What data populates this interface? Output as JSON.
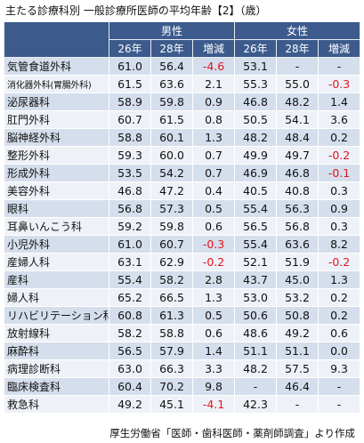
{
  "title": "主たる診療科別 一般診療所医師の平均年齢【2】（歳）",
  "groups": {
    "male": "男性",
    "female": "女性"
  },
  "subheaders": [
    "26年",
    "28年",
    "増減",
    "26年",
    "28年",
    "増減"
  ],
  "rows": [
    {
      "name": "気管食道外科",
      "v": [
        "61.0",
        "56.4",
        "-4.6",
        "53.1",
        "-",
        "-"
      ],
      "neg": [
        false,
        false,
        true,
        false,
        false,
        false
      ]
    },
    {
      "name": "消化器外科(胃腸外科)",
      "v": [
        "61.5",
        "63.6",
        "2.1",
        "55.3",
        "55.0",
        "-0.3"
      ],
      "neg": [
        false,
        false,
        false,
        false,
        false,
        true
      ],
      "small": true
    },
    {
      "name": "泌尿器科",
      "v": [
        "58.9",
        "59.8",
        "0.9",
        "46.8",
        "48.2",
        "1.4"
      ],
      "neg": [
        false,
        false,
        false,
        false,
        false,
        false
      ]
    },
    {
      "name": "肛門外科",
      "v": [
        "60.7",
        "61.5",
        "0.8",
        "50.5",
        "54.1",
        "3.6"
      ],
      "neg": [
        false,
        false,
        false,
        false,
        false,
        false
      ]
    },
    {
      "name": "脳神経外科",
      "v": [
        "58.8",
        "60.1",
        "1.3",
        "48.2",
        "48.4",
        "0.2"
      ],
      "neg": [
        false,
        false,
        false,
        false,
        false,
        false
      ]
    },
    {
      "name": "整形外科",
      "v": [
        "59.3",
        "60.0",
        "0.7",
        "49.9",
        "49.7",
        "-0.2"
      ],
      "neg": [
        false,
        false,
        false,
        false,
        false,
        true
      ]
    },
    {
      "name": "形成外科",
      "v": [
        "53.5",
        "54.2",
        "0.7",
        "46.9",
        "46.8",
        "-0.1"
      ],
      "neg": [
        false,
        false,
        false,
        false,
        false,
        true
      ]
    },
    {
      "name": "美容外科",
      "v": [
        "46.8",
        "47.2",
        "0.4",
        "40.5",
        "40.8",
        "0.3"
      ],
      "neg": [
        false,
        false,
        false,
        false,
        false,
        false
      ]
    },
    {
      "name": "眼科",
      "v": [
        "56.8",
        "57.3",
        "0.5",
        "55.4",
        "56.3",
        "0.9"
      ],
      "neg": [
        false,
        false,
        false,
        false,
        false,
        false
      ]
    },
    {
      "name": "耳鼻いんこう科",
      "v": [
        "59.2",
        "59.8",
        "0.6",
        "56.5",
        "56.8",
        "0.3"
      ],
      "neg": [
        false,
        false,
        false,
        false,
        false,
        false
      ]
    },
    {
      "name": "小児外科",
      "v": [
        "61.0",
        "60.7",
        "-0.3",
        "55.4",
        "63.6",
        "8.2"
      ],
      "neg": [
        false,
        false,
        true,
        false,
        false,
        false
      ]
    },
    {
      "name": "産婦人科",
      "v": [
        "63.1",
        "62.9",
        "-0.2",
        "52.1",
        "51.9",
        "-0.2"
      ],
      "neg": [
        false,
        false,
        true,
        false,
        false,
        true
      ]
    },
    {
      "name": "産科",
      "v": [
        "55.4",
        "58.2",
        "2.8",
        "43.7",
        "45.0",
        "1.3"
      ],
      "neg": [
        false,
        false,
        false,
        false,
        false,
        false
      ]
    },
    {
      "name": "婦人科",
      "v": [
        "65.2",
        "66.5",
        "1.3",
        "53.0",
        "53.2",
        "0.2"
      ],
      "neg": [
        false,
        false,
        false,
        false,
        false,
        false
      ]
    },
    {
      "name": "リハビリテーション科",
      "v": [
        "60.8",
        "61.3",
        "0.5",
        "50.6",
        "50.8",
        "0.2"
      ],
      "neg": [
        false,
        false,
        false,
        false,
        false,
        false
      ]
    },
    {
      "name": "放射線科",
      "v": [
        "58.2",
        "58.8",
        "0.6",
        "48.6",
        "49.2",
        "0.6"
      ],
      "neg": [
        false,
        false,
        false,
        false,
        false,
        false
      ]
    },
    {
      "name": "麻酔科",
      "v": [
        "56.5",
        "57.9",
        "1.4",
        "51.1",
        "51.1",
        "0.0"
      ],
      "neg": [
        false,
        false,
        false,
        false,
        false,
        false
      ]
    },
    {
      "name": "病理診断科",
      "v": [
        "63.0",
        "66.3",
        "3.3",
        "48.2",
        "57.5",
        "9.3"
      ],
      "neg": [
        false,
        false,
        false,
        false,
        false,
        false
      ]
    },
    {
      "name": "臨床検査科",
      "v": [
        "60.4",
        "70.2",
        "9.8",
        "-",
        "46.4",
        "-"
      ],
      "neg": [
        false,
        false,
        false,
        false,
        false,
        false
      ]
    },
    {
      "name": "救急科",
      "v": [
        "49.2",
        "45.1",
        "-4.1",
        "42.3",
        "-",
        "-"
      ],
      "neg": [
        false,
        false,
        true,
        false,
        false,
        false
      ]
    }
  ],
  "source": "厚生労働省「医師・歯科医師・薬剤師調査」より作成",
  "colors": {
    "header": "#3c5b8c",
    "row_odd": "#d5deec",
    "row_even": "#eef2f8",
    "negative": "#e0141e"
  }
}
